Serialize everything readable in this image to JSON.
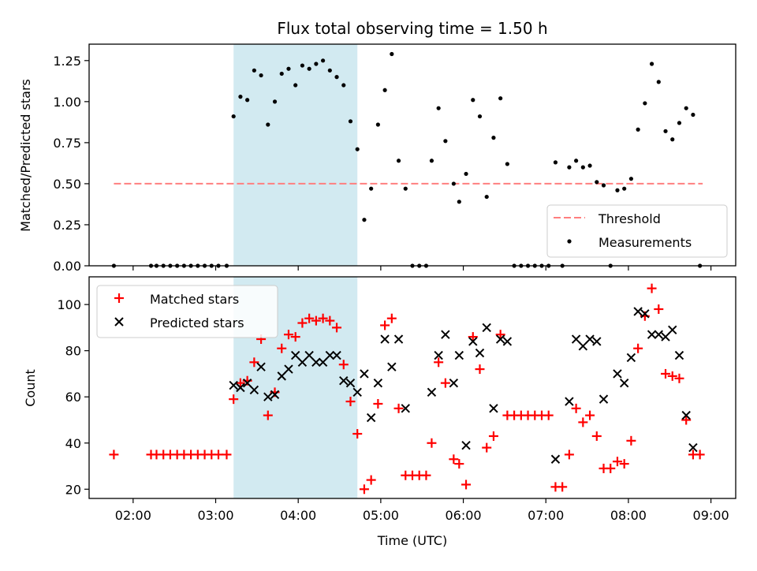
{
  "chart_data": {
    "title": "Flux total observing time = 1.50 h",
    "xlabel": "Time (UTC)",
    "x_tick_labels": [
      "02:00",
      "03:00",
      "04:00",
      "05:00",
      "06:00",
      "07:00",
      "08:00",
      "09:00"
    ],
    "x_ticks": [
      "02:00",
      "03:00",
      "04:00",
      "05:00",
      "06:00",
      "07:00",
      "08:00",
      "09:00"
    ],
    "xlim": [
      "01:28",
      "09:18"
    ],
    "highlight_span": {
      "start": "03:13",
      "end": "04:43",
      "color": "#add8e6"
    },
    "panels": [
      {
        "type": "scatter",
        "ylabel": "Matched/Predicted stars",
        "ylim": [
          0,
          1.35
        ],
        "y_ticks": [
          0.0,
          0.25,
          0.5,
          0.75,
          1.0,
          1.25
        ],
        "y_tick_labels": [
          "0.00",
          "0.25",
          "0.50",
          "0.75",
          "1.00",
          "1.25"
        ],
        "legend": {
          "position": "lower-right",
          "entries": [
            "Threshold",
            "Measurements"
          ]
        },
        "threshold": {
          "name": "Threshold",
          "value": 0.5,
          "x_start": "01:46",
          "x_end": "08:54",
          "color": "#ff7f7f",
          "style": "dashed"
        },
        "series": [
          {
            "name": "Measurements",
            "color": "#000000",
            "marker": "dot",
            "points": [
              [
                "01:46",
                0.0
              ],
              [
                "02:13",
                0.0
              ],
              [
                "02:17",
                0.0
              ],
              [
                "02:22",
                0.0
              ],
              [
                "02:27",
                0.0
              ],
              [
                "02:32",
                0.0
              ],
              [
                "02:37",
                0.0
              ],
              [
                "02:42",
                0.0
              ],
              [
                "02:47",
                0.0
              ],
              [
                "02:52",
                0.0
              ],
              [
                "02:57",
                0.0
              ],
              [
                "03:02",
                0.0
              ],
              [
                "03:08",
                0.0
              ],
              [
                "03:13",
                0.91
              ],
              [
                "03:18",
                1.03
              ],
              [
                "03:23",
                1.01
              ],
              [
                "03:28",
                1.19
              ],
              [
                "03:33",
                1.16
              ],
              [
                "03:38",
                0.86
              ],
              [
                "03:43",
                1.0
              ],
              [
                "03:48",
                1.17
              ],
              [
                "03:53",
                1.2
              ],
              [
                "03:58",
                1.1
              ],
              [
                "04:03",
                1.22
              ],
              [
                "04:08",
                1.2
              ],
              [
                "04:13",
                1.23
              ],
              [
                "04:18",
                1.25
              ],
              [
                "04:23",
                1.19
              ],
              [
                "04:28",
                1.15
              ],
              [
                "04:33",
                1.1
              ],
              [
                "04:38",
                0.88
              ],
              [
                "04:43",
                0.71
              ],
              [
                "04:48",
                0.28
              ],
              [
                "04:53",
                0.47
              ],
              [
                "04:58",
                0.86
              ],
              [
                "05:03",
                1.07
              ],
              [
                "05:08",
                1.29
              ],
              [
                "05:13",
                0.64
              ],
              [
                "05:18",
                0.47
              ],
              [
                "05:23",
                0.0
              ],
              [
                "05:28",
                0.0
              ],
              [
                "05:33",
                0.0
              ],
              [
                "05:37",
                0.64
              ],
              [
                "05:42",
                0.96
              ],
              [
                "05:47",
                0.76
              ],
              [
                "05:53",
                0.5
              ],
              [
                "05:57",
                0.39
              ],
              [
                "06:02",
                0.56
              ],
              [
                "06:07",
                1.01
              ],
              [
                "06:12",
                0.91
              ],
              [
                "06:17",
                0.42
              ],
              [
                "06:22",
                0.78
              ],
              [
                "06:27",
                1.02
              ],
              [
                "06:32",
                0.62
              ],
              [
                "06:37",
                0.0
              ],
              [
                "06:42",
                0.0
              ],
              [
                "06:47",
                0.0
              ],
              [
                "06:52",
                0.0
              ],
              [
                "06:57",
                0.0
              ],
              [
                "07:02",
                0.0
              ],
              [
                "07:07",
                0.63
              ],
              [
                "07:12",
                0.0
              ],
              [
                "07:17",
                0.6
              ],
              [
                "07:22",
                0.64
              ],
              [
                "07:27",
                0.6
              ],
              [
                "07:32",
                0.61
              ],
              [
                "07:37",
                0.51
              ],
              [
                "07:42",
                0.49
              ],
              [
                "07:47",
                0.0
              ],
              [
                "07:52",
                0.46
              ],
              [
                "07:57",
                0.47
              ],
              [
                "08:02",
                0.53
              ],
              [
                "08:07",
                0.83
              ],
              [
                "08:12",
                0.99
              ],
              [
                "08:17",
                1.23
              ],
              [
                "08:22",
                1.12
              ],
              [
                "08:27",
                0.82
              ],
              [
                "08:32",
                0.77
              ],
              [
                "08:37",
                0.87
              ],
              [
                "08:42",
                0.96
              ],
              [
                "08:47",
                0.92
              ],
              [
                "08:52",
                0.0
              ]
            ]
          }
        ]
      },
      {
        "type": "scatter",
        "ylabel": "Count",
        "ylim": [
          16,
          112
        ],
        "y_ticks": [
          20,
          40,
          60,
          80,
          100
        ],
        "y_tick_labels": [
          "20",
          "40",
          "60",
          "80",
          "100"
        ],
        "legend": {
          "position": "top-left",
          "entries": [
            "Matched stars",
            "Predicted stars"
          ]
        },
        "series": [
          {
            "name": "Matched stars",
            "color": "#ff0000",
            "marker": "plus",
            "points": [
              [
                "01:46",
                35
              ],
              [
                "02:13",
                35
              ],
              [
                "02:17",
                35
              ],
              [
                "02:22",
                35
              ],
              [
                "02:27",
                35
              ],
              [
                "02:32",
                35
              ],
              [
                "02:37",
                35
              ],
              [
                "02:42",
                35
              ],
              [
                "02:47",
                35
              ],
              [
                "02:52",
                35
              ],
              [
                "02:57",
                35
              ],
              [
                "03:02",
                35
              ],
              [
                "03:08",
                35
              ],
              [
                "03:13",
                59
              ],
              [
                "03:18",
                66
              ],
              [
                "03:23",
                67
              ],
              [
                "03:28",
                75
              ],
              [
                "03:33",
                85
              ],
              [
                "03:38",
                52
              ],
              [
                "03:43",
                62
              ],
              [
                "03:48",
                81
              ],
              [
                "03:53",
                87
              ],
              [
                "03:58",
                86
              ],
              [
                "04:03",
                92
              ],
              [
                "04:08",
                94
              ],
              [
                "04:13",
                93
              ],
              [
                "04:18",
                94
              ],
              [
                "04:23",
                93
              ],
              [
                "04:28",
                90
              ],
              [
                "04:33",
                74
              ],
              [
                "04:38",
                58
              ],
              [
                "04:43",
                44
              ],
              [
                "04:48",
                20
              ],
              [
                "04:53",
                24
              ],
              [
                "04:58",
                57
              ],
              [
                "05:03",
                91
              ],
              [
                "05:08",
                94
              ],
              [
                "05:13",
                55
              ],
              [
                "05:18",
                26
              ],
              [
                "05:23",
                26
              ],
              [
                "05:28",
                26
              ],
              [
                "05:33",
                26
              ],
              [
                "05:37",
                40
              ],
              [
                "05:42",
                75
              ],
              [
                "05:47",
                66
              ],
              [
                "05:53",
                33
              ],
              [
                "05:57",
                31
              ],
              [
                "06:02",
                22
              ],
              [
                "06:07",
                86
              ],
              [
                "06:12",
                72
              ],
              [
                "06:17",
                38
              ],
              [
                "06:22",
                43
              ],
              [
                "06:27",
                87
              ],
              [
                "06:32",
                52
              ],
              [
                "06:37",
                52
              ],
              [
                "06:42",
                52
              ],
              [
                "06:47",
                52
              ],
              [
                "06:52",
                52
              ],
              [
                "06:57",
                52
              ],
              [
                "07:02",
                52
              ],
              [
                "07:07",
                21
              ],
              [
                "07:12",
                21
              ],
              [
                "07:17",
                35
              ],
              [
                "07:22",
                55
              ],
              [
                "07:27",
                49
              ],
              [
                "07:32",
                52
              ],
              [
                "07:37",
                43
              ],
              [
                "07:42",
                29
              ],
              [
                "07:47",
                29
              ],
              [
                "07:52",
                32
              ],
              [
                "07:57",
                31
              ],
              [
                "08:02",
                41
              ],
              [
                "08:07",
                81
              ],
              [
                "08:12",
                95
              ],
              [
                "08:17",
                107
              ],
              [
                "08:22",
                98
              ],
              [
                "08:27",
                70
              ],
              [
                "08:32",
                69
              ],
              [
                "08:37",
                68
              ],
              [
                "08:42",
                50
              ],
              [
                "08:47",
                35
              ],
              [
                "08:52",
                35
              ]
            ]
          },
          {
            "name": "Predicted stars",
            "color": "#000000",
            "marker": "x",
            "points": [
              [
                "03:13",
                65
              ],
              [
                "03:18",
                64
              ],
              [
                "03:23",
                66
              ],
              [
                "03:28",
                63
              ],
              [
                "03:33",
                73
              ],
              [
                "03:38",
                60
              ],
              [
                "03:43",
                61
              ],
              [
                "03:48",
                69
              ],
              [
                "03:53",
                72
              ],
              [
                "03:58",
                78
              ],
              [
                "04:03",
                75
              ],
              [
                "04:08",
                78
              ],
              [
                "04:13",
                75
              ],
              [
                "04:18",
                75
              ],
              [
                "04:23",
                78
              ],
              [
                "04:28",
                78
              ],
              [
                "04:33",
                67
              ],
              [
                "04:38",
                66
              ],
              [
                "04:43",
                62
              ],
              [
                "04:48",
                70
              ],
              [
                "04:53",
                51
              ],
              [
                "04:58",
                66
              ],
              [
                "05:03",
                85
              ],
              [
                "05:08",
                73
              ],
              [
                "05:13",
                85
              ],
              [
                "05:18",
                55
              ],
              [
                "05:37",
                62
              ],
              [
                "05:42",
                78
              ],
              [
                "05:47",
                87
              ],
              [
                "05:53",
                66
              ],
              [
                "05:57",
                78
              ],
              [
                "06:02",
                39
              ],
              [
                "06:07",
                84
              ],
              [
                "06:12",
                79
              ],
              [
                "06:17",
                90
              ],
              [
                "06:22",
                55
              ],
              [
                "06:27",
                85
              ],
              [
                "06:32",
                84
              ],
              [
                "07:07",
                33
              ],
              [
                "07:17",
                58
              ],
              [
                "07:22",
                85
              ],
              [
                "07:27",
                82
              ],
              [
                "07:32",
                85
              ],
              [
                "07:37",
                84
              ],
              [
                "07:42",
                59
              ],
              [
                "07:52",
                70
              ],
              [
                "07:57",
                66
              ],
              [
                "08:02",
                77
              ],
              [
                "08:07",
                97
              ],
              [
                "08:12",
                96
              ],
              [
                "08:17",
                87
              ],
              [
                "08:22",
                87
              ],
              [
                "08:27",
                86
              ],
              [
                "08:32",
                89
              ],
              [
                "08:37",
                78
              ],
              [
                "08:42",
                52
              ],
              [
                "08:47",
                38
              ]
            ]
          }
        ]
      }
    ]
  }
}
